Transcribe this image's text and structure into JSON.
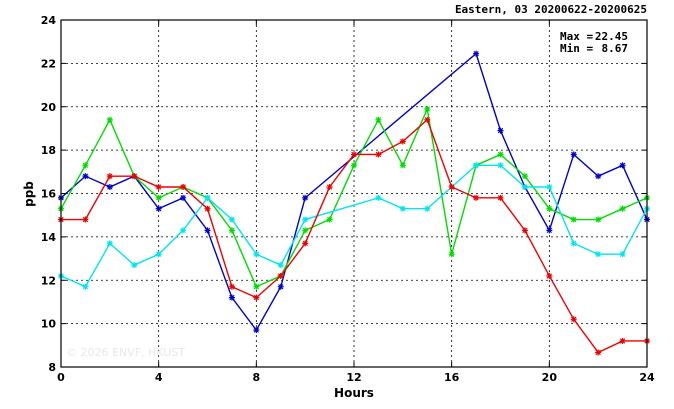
{
  "chart_data": {
    "type": "line",
    "title": "Eastern, 03 20200622-20200625",
    "xlabel": "Hours",
    "ylabel": "ppb",
    "xlim": [
      0,
      24
    ],
    "ylim": [
      8,
      24
    ],
    "xticks": [
      0,
      4,
      8,
      12,
      16,
      20,
      24
    ],
    "yticks": [
      8,
      10,
      12,
      14,
      16,
      18,
      20,
      22,
      24
    ],
    "x": [
      0,
      1,
      2,
      3,
      4,
      5,
      6,
      7,
      8,
      9,
      10,
      11,
      12,
      13,
      14,
      15,
      16,
      17,
      18,
      19,
      20,
      21,
      22,
      23,
      24
    ],
    "grid": true,
    "stats": {
      "max_label": "Max =",
      "max_value": "22.45",
      "min_label": "Min =",
      "min_value": "8.67"
    },
    "watermark": "© 2026 ENVF, HKUST",
    "series": [
      {
        "color": "#0000cc",
        "x": [
          0,
          1,
          2,
          3,
          4,
          5,
          6,
          7,
          8,
          9,
          10,
          17,
          18,
          19,
          20,
          21,
          22,
          23,
          24
        ],
        "values": [
          15.8,
          16.8,
          16.3,
          16.8,
          15.3,
          15.8,
          14.3,
          11.2,
          9.7,
          11.7,
          15.8,
          22.45,
          18.9,
          16.3,
          14.3,
          17.8,
          16.8,
          17.3,
          14.8
        ]
      },
      {
        "color": "#00dd00",
        "x": [
          0,
          1,
          2,
          3,
          4,
          5,
          6,
          7,
          8,
          9,
          10,
          11,
          12,
          13,
          14,
          15,
          16,
          17,
          18,
          19,
          20,
          21,
          22,
          23,
          24
        ],
        "values": [
          15.3,
          17.3,
          19.4,
          16.8,
          15.8,
          16.3,
          15.8,
          14.3,
          11.7,
          12.2,
          14.3,
          14.8,
          17.3,
          19.4,
          17.3,
          19.9,
          13.2,
          17.3,
          17.8,
          16.8,
          15.3,
          14.8,
          14.8,
          15.3,
          15.8
        ]
      },
      {
        "color": "#00e5ee",
        "x": [
          0,
          1,
          2,
          3,
          4,
          5,
          6,
          7,
          8,
          9,
          10,
          13,
          14,
          15,
          16,
          17,
          18,
          19,
          20,
          21,
          22,
          23,
          24
        ],
        "values": [
          12.2,
          11.7,
          13.7,
          12.7,
          13.2,
          14.3,
          15.8,
          14.8,
          13.2,
          12.7,
          14.8,
          15.8,
          15.3,
          15.3,
          16.3,
          17.3,
          17.3,
          16.3,
          16.3,
          13.7,
          13.2,
          13.2,
          15.3
        ]
      },
      {
        "color": "#ee0000",
        "x": [
          0,
          1,
          2,
          3,
          4,
          5,
          6,
          7,
          8,
          9,
          10,
          11,
          12,
          13,
          14,
          15,
          16,
          17,
          18,
          19,
          20,
          21,
          22,
          23,
          24
        ],
        "values": [
          14.8,
          14.8,
          16.8,
          16.8,
          16.3,
          16.3,
          15.3,
          11.7,
          11.2,
          12.2,
          13.7,
          16.3,
          17.8,
          17.8,
          18.4,
          19.4,
          16.3,
          15.8,
          15.8,
          14.3,
          12.2,
          10.2,
          8.67,
          9.2,
          9.2
        ]
      }
    ]
  }
}
